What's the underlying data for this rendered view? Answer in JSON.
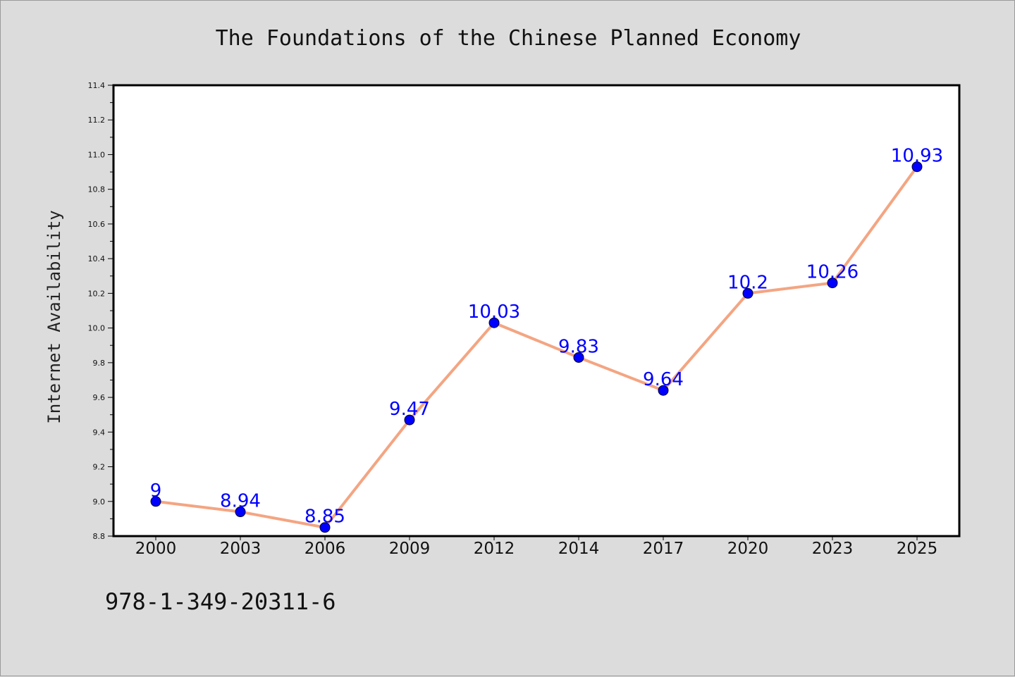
{
  "chart_data": {
    "type": "line",
    "title": "The Foundations of the Chinese Planned Economy",
    "xlabel": "",
    "ylabel": "Internet Availability",
    "categories": [
      "2000",
      "2003",
      "2006",
      "2009",
      "2012",
      "2014",
      "2017",
      "2020",
      "2023",
      "2025"
    ],
    "series": [
      {
        "values": [
          9,
          8.94,
          8.85,
          9.47,
          10.03,
          9.83,
          9.64,
          10.2,
          10.26,
          10.93
        ]
      }
    ],
    "data_labels": [
      "9",
      "8.94",
      "8.85",
      "9.47",
      "10.03",
      "9.83",
      "9.64",
      "10.2",
      "10.26",
      "10.93"
    ],
    "ylim": [
      8.8,
      11.4
    ],
    "yticks": [
      "8.8",
      "9.0",
      "9.2",
      "9.4",
      "9.6",
      "9.8",
      "10.0",
      "10.2",
      "10.4",
      "10.6",
      "10.8",
      "11.0",
      "11.2",
      "11.4"
    ],
    "grid": false,
    "line_color": "#f4a582",
    "marker_color": "#0000ff",
    "label_color": "#0000ff"
  },
  "footer": {
    "isbn": "978-1-349-20311-6"
  }
}
